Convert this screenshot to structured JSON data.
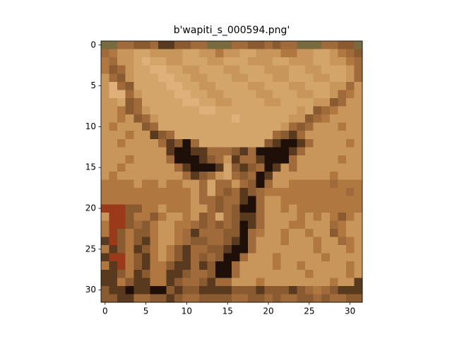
{
  "chart_data": {
    "type": "image",
    "title": "b'wapiti_s_000594.png'",
    "xlim": [
      -0.5,
      31.5
    ],
    "ylim": [
      31.5,
      -0.5
    ],
    "xticks": [
      0,
      5,
      10,
      15,
      20,
      25,
      30
    ],
    "yticks": [
      0,
      5,
      10,
      15,
      20,
      25,
      30
    ],
    "palette": {
      "a": "#c8955a",
      "b": "#d4a56a",
      "c": "#b07840",
      "d": "#8a5a30",
      "e": "#5a3a1e",
      "f": "#1e1008",
      "g": "#a06a3a",
      "h": "#e0b07a",
      "i": "#7a6a40",
      "j": "#9a3a1a"
    },
    "pixels": [
      "iiggddgeeddggiiiggddgdggiiiggddi",
      "gcaabbaaaabbaacaabbaaaccaabbacgd",
      "cgaabhbbaabbbaabbbaaabbaaabbaacg",
      "cdgabbhhbbaabbbaabbbaaabbaabbbag",
      "agdabbbhhbbaabbbaabbbaabbbaabbag",
      "ahgdbbbbhhbbaabbbbaabbbaabbbaaga",
      "ahhgabbbbhhbbaabbbbaabbbaabbagca",
      "aabdgbbbbbhhbbaabbbbaabbbbaadgaa",
      "aacdgabbbbbbhhbbbbbbbbbbabdgcaaa",
      "aacadgabbbbbbbbbhbbbbbbaadgcaaaa",
      "acaaadgbbbbbbbbbbbbbbbagdgaaacaa",
      "aaacaaedgbbbbbbbbbbbbgdegaaaaaaa",
      "aacaaaagedfgbbbbbbbbdeffegaaaaca",
      "aaaaaaaaeffeegggdegffffegaaaaaaa",
      "aaacaaaagfffedgaeggefffgaaaaacaa",
      "aacaaaaaagefffebdedgfeagaaaaaaaa",
      "acaaaaaaaagedgabgdgfeaaaaaaacaaa",
      "ccccaccaccaagbggagdfgaacccccgccc",
      "cccccccccccagbgdgedgccccccccccgc",
      "cccccccccccaggdggefgaacccccccccc",
      "jjjddccacccaagdgdffgaacacccccccc",
      "ajjdccdcaacadgbgdeegaaaacacacdca",
      "cjjdgdcaaccgdgdgdfegaaaccaaagcaa",
      "cjdcddcaacgegggddfgcaacaacaadcaa",
      "ejdcdecaacgddggdefgaaacaaacaagca",
      "cedcedcacdeggddeffgaaaaaaacaaaca",
      "ejjcdecacdegdgdffgaaacaaaaacaaaa",
      "cejcdeccdeegedffgaaaacaacaaaaaca",
      "eedcedcceedggdffgaaaaaaaacaaaaca",
      "eecdeeccedggdeggaaacaaaaaaaacaae",
      "deefeeffdeddeeeedddedddedgcgdeee",
      "ddeeggddedggddddggddgdggddgdggdd"
    ]
  }
}
